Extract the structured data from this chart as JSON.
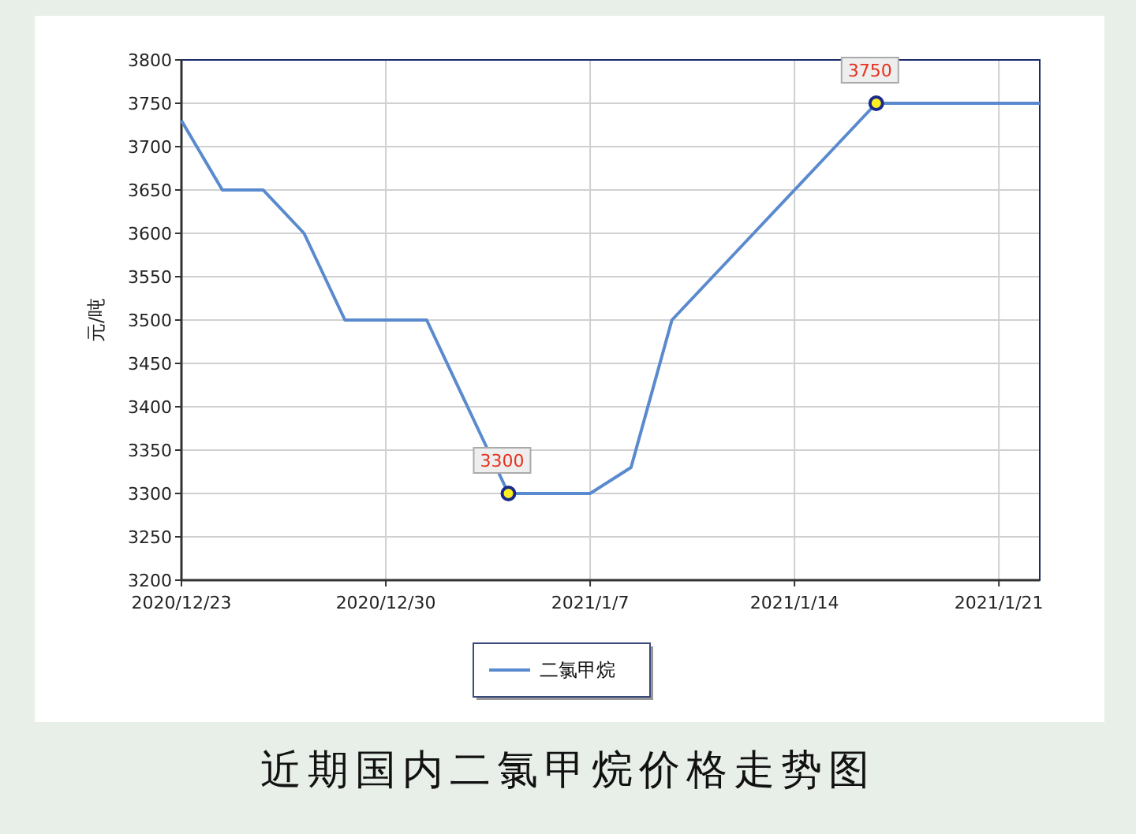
{
  "chart_data": {
    "type": "line",
    "title": "近期国内二氯甲烷价格走势图",
    "ylabel": "元/吨",
    "categories": [
      "2020/12/23",
      null,
      null,
      null,
      null,
      "2020/12/30",
      null,
      null,
      null,
      null,
      "2021/1/7",
      null,
      null,
      null,
      null,
      "2021/1/14",
      null,
      null,
      null,
      null,
      "2021/1/21",
      null
    ],
    "series": [
      {
        "name": "二氯甲烷",
        "color": "#5a8ace",
        "values": [
          3730,
          3650,
          3650,
          3600,
          3500,
          3500,
          3500,
          3400,
          3300,
          3300,
          3300,
          3330,
          3500,
          3550,
          3600,
          3650,
          3700,
          3750,
          3750,
          3750,
          3750,
          3750
        ],
        "value_labels": [
          null,
          null,
          null,
          null,
          null,
          null,
          null,
          null,
          "3300",
          null,
          null,
          null,
          null,
          null,
          null,
          null,
          null,
          "3750",
          null,
          null,
          null,
          null
        ]
      }
    ],
    "ylim": [
      3200,
      3800
    ],
    "yticks": [
      3200,
      3250,
      3300,
      3350,
      3400,
      3450,
      3500,
      3550,
      3600,
      3650,
      3700,
      3750,
      3800
    ],
    "grid": true,
    "legend": "bottom"
  }
}
